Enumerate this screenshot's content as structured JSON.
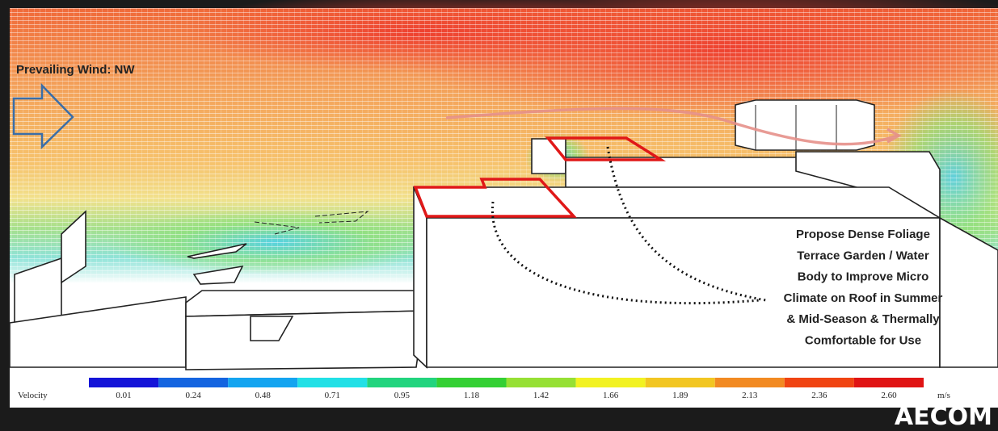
{
  "wind": {
    "label": "Prevailing Wind: NW"
  },
  "annotation": {
    "lines": [
      "Propose Dense Foliage",
      "Terrace Garden / Water",
      "Body to Improve Micro",
      "Climate  on Roof in Summer",
      "& Mid-Season & Thermally",
      "Comfortable for Use"
    ]
  },
  "legend": {
    "title": "Velocity",
    "unit": "m/s",
    "labels": [
      "0.01",
      "0.24",
      "0.48",
      "0.71",
      "0.95",
      "1.18",
      "1.42",
      "1.66",
      "1.89",
      "2.13",
      "2.36",
      "2.60"
    ],
    "colors": [
      "#1414d8",
      "#1464e0",
      "#14a4f0",
      "#22e0e6",
      "#22d47e",
      "#34d034",
      "#96e034",
      "#f2f222",
      "#f2c622",
      "#f28a22",
      "#f04412",
      "#e01414"
    ]
  },
  "logo": "AECOM"
}
